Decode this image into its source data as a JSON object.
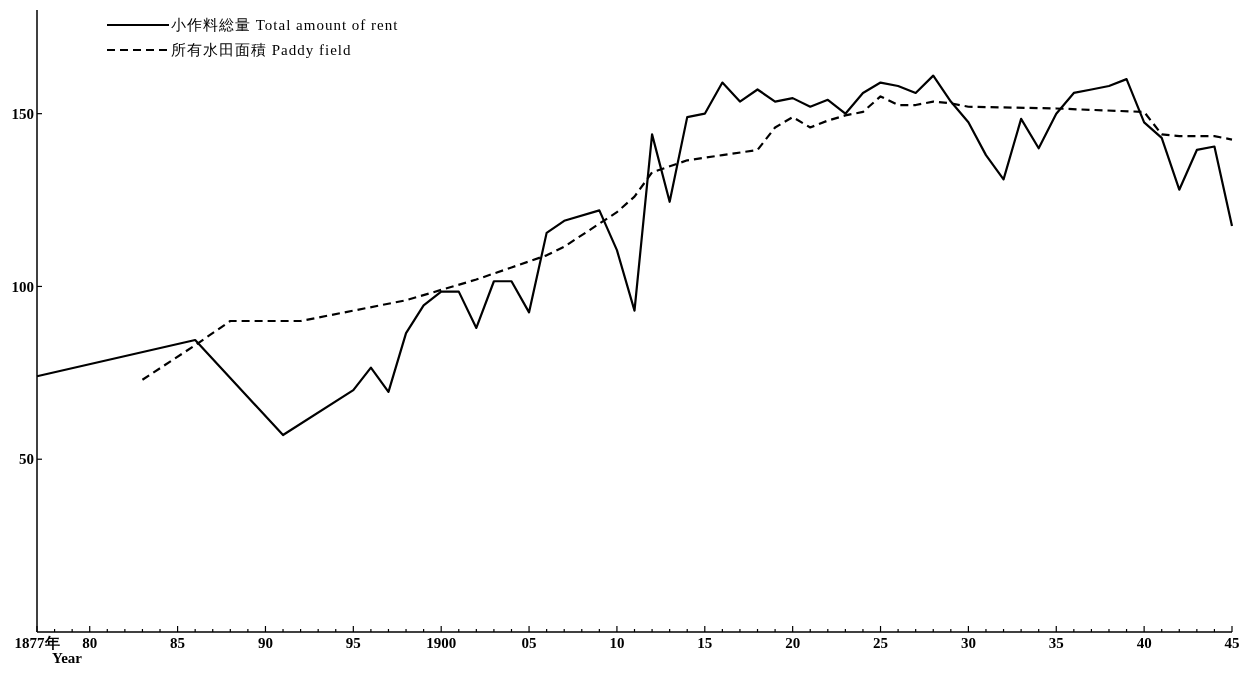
{
  "chart_data": {
    "type": "line",
    "xlabel": "Year",
    "xlim": [
      1877,
      1945
    ],
    "ylim": [
      0,
      180
    ],
    "yticks": [
      50,
      100,
      150
    ],
    "xticks": [
      {
        "value": 1877,
        "label": "1877年"
      },
      {
        "value": 1878,
        "label": null
      },
      {
        "value": 1879,
        "label": null
      },
      {
        "value": 1880,
        "label": "80"
      },
      {
        "value": 1881,
        "label": null
      },
      {
        "value": 1882,
        "label": null
      },
      {
        "value": 1883,
        "label": null
      },
      {
        "value": 1884,
        "label": null
      },
      {
        "value": 1885,
        "label": "85"
      },
      {
        "value": 1886,
        "label": null
      },
      {
        "value": 1887,
        "label": null
      },
      {
        "value": 1888,
        "label": null
      },
      {
        "value": 1889,
        "label": null
      },
      {
        "value": 1890,
        "label": "90"
      },
      {
        "value": 1891,
        "label": null
      },
      {
        "value": 1892,
        "label": null
      },
      {
        "value": 1893,
        "label": null
      },
      {
        "value": 1894,
        "label": null
      },
      {
        "value": 1895,
        "label": "95"
      },
      {
        "value": 1896,
        "label": null
      },
      {
        "value": 1897,
        "label": null
      },
      {
        "value": 1898,
        "label": null
      },
      {
        "value": 1899,
        "label": null
      },
      1900,
      {
        "value": 1901,
        "label": null
      },
      {
        "value": 1902,
        "label": null
      },
      {
        "value": 1903,
        "label": null
      },
      {
        "value": 1904,
        "label": null
      },
      {
        "value": 1905,
        "label": "05"
      },
      {
        "value": 1906,
        "label": null
      },
      {
        "value": 1907,
        "label": null
      },
      {
        "value": 1908,
        "label": null
      },
      {
        "value": 1909,
        "label": null
      },
      {
        "value": 1910,
        "label": "10"
      },
      {
        "value": 1911,
        "label": null
      },
      {
        "value": 1912,
        "label": null
      },
      {
        "value": 1913,
        "label": null
      },
      {
        "value": 1914,
        "label": null
      },
      {
        "value": 1915,
        "label": "15"
      },
      {
        "value": 1916,
        "label": null
      },
      {
        "value": 1917,
        "label": null
      },
      {
        "value": 1918,
        "label": null
      },
      {
        "value": 1919,
        "label": null
      },
      {
        "value": 1920,
        "label": "20"
      },
      {
        "value": 1921,
        "label": null
      },
      {
        "value": 1922,
        "label": null
      },
      {
        "value": 1923,
        "label": null
      },
      {
        "value": 1924,
        "label": null
      },
      {
        "value": 1925,
        "label": "25"
      },
      {
        "value": 1926,
        "label": null
      },
      {
        "value": 1927,
        "label": null
      },
      {
        "value": 1928,
        "label": null
      },
      {
        "value": 1929,
        "label": null
      },
      {
        "value": 1930,
        "label": "30"
      },
      {
        "value": 1931,
        "label": null
      },
      {
        "value": 1932,
        "label": null
      },
      {
        "value": 1933,
        "label": null
      },
      {
        "value": 1934,
        "label": null
      },
      {
        "value": 1935,
        "label": "35"
      },
      {
        "value": 1936,
        "label": null
      },
      {
        "value": 1937,
        "label": null
      },
      {
        "value": 1938,
        "label": null
      },
      {
        "value": 1939,
        "label": null
      },
      {
        "value": 1940,
        "label": "40"
      },
      {
        "value": 1941,
        "label": null
      },
      {
        "value": 1942,
        "label": null
      },
      {
        "value": 1943,
        "label": null
      },
      {
        "value": 1944,
        "label": null
      },
      {
        "value": 1945,
        "label": "45"
      }
    ],
    "legend": "top left",
    "grid": false,
    "series": [
      {
        "name": "小作料総量 Total amount of rent",
        "color": "#000000",
        "line_style": "solid",
        "x": [
          1877,
          1886,
          1891,
          1895,
          1896,
          1897,
          1898,
          1899,
          1900,
          1901,
          1902,
          1903,
          1904,
          1905,
          1906,
          1907,
          1909,
          1910,
          1911,
          1912,
          1913,
          1914,
          1915,
          1916,
          1917,
          1918,
          1919,
          1920,
          1921,
          1922,
          1923,
          1924,
          1925,
          1926,
          1927,
          1928,
          1929,
          1930,
          1931,
          1932,
          1933,
          1934,
          1935,
          1936,
          1937,
          1938,
          1939,
          1940,
          1941,
          1942,
          1943,
          1944,
          1945
        ],
        "values": [
          74,
          84.5,
          57,
          70,
          76.5,
          69.5,
          86.5,
          94.5,
          98.5,
          98.5,
          88,
          101.5,
          101.5,
          92.5,
          115.5,
          119,
          122,
          110.5,
          93,
          144,
          124.5,
          149,
          150,
          159,
          153.5,
          157,
          153.5,
          154.5,
          152,
          154,
          150,
          156,
          159,
          158,
          156,
          161,
          153.5,
          147.5,
          138,
          131,
          148.5,
          140,
          150,
          156,
          157,
          158,
          160,
          147.5,
          143,
          128,
          139.5,
          140.5,
          117.5
        ]
      },
      {
        "name": "所有水田面積 Paddy field",
        "color": "#000000",
        "line_style": "dashed",
        "x": [
          1883,
          1886,
          1888,
          1892,
          1895,
          1898,
          1900,
          1902,
          1904,
          1906,
          1907,
          1910,
          1911,
          1912,
          1914,
          1916,
          1918,
          1919,
          1920,
          1921,
          1922,
          1923,
          1924,
          1925,
          1926,
          1927,
          1928,
          1929,
          1930,
          1935,
          1940,
          1941,
          1942,
          1944,
          1945
        ],
        "values": [
          73,
          83,
          90,
          90,
          93,
          96,
          99,
          102,
          105.5,
          109,
          111.5,
          121.5,
          126,
          133,
          136.5,
          138,
          139.5,
          146,
          149,
          146,
          148,
          149.5,
          150.5,
          155,
          152.5,
          152.5,
          153.5,
          153,
          152,
          151.5,
          150.5,
          144,
          143.5,
          143.5,
          142.5
        ]
      }
    ]
  }
}
